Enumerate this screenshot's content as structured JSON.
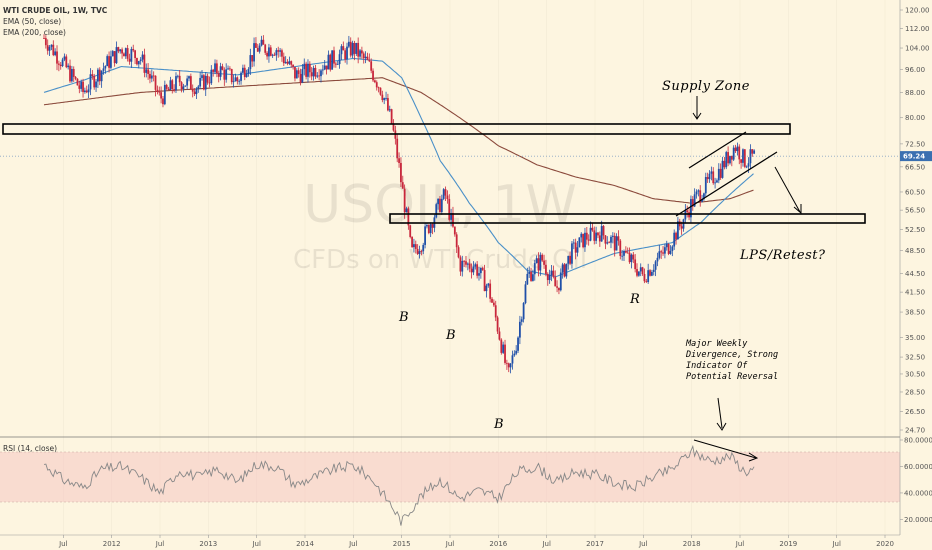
{
  "header": {
    "title": "WTI CRUDE OIL, 1W, TVC",
    "indicator_ema50": "EMA (50, close)",
    "indicator_ema200": "EMA (200, close)",
    "rsi_label": "RSI (14, close)"
  },
  "watermark": {
    "symbol": "USOIL, 1W",
    "description": "CFDs on WTI Crude Oil"
  },
  "colors": {
    "background": "#fdf5e0",
    "up_candle": "#1f4fa8",
    "down_candle": "#c8263b",
    "ema50": "#4a90c8",
    "ema200": "#8b4a3c",
    "rsi_band": "#f5c6c2",
    "rsi_line": "#888888",
    "last_price": "#3a6fb0"
  },
  "annotations": {
    "supply_zone": "Supply Zone",
    "lps_retest": "LPS/Retest?",
    "b1": "B",
    "b2": "B",
    "b3": "B",
    "r": "R",
    "divergence_line1": "Major Weekly",
    "divergence_line2": "Divergence, Strong",
    "divergence_line3": "Indicator Of",
    "divergence_line4": "Potential Reversal"
  },
  "last_price": "69.24",
  "chart_data": [
    {
      "type": "candlestick",
      "title": "WTI CRUDE OIL, 1W, TVC",
      "x_tick_labels": [
        "Jul",
        "2012",
        "Jul",
        "2013",
        "Jul",
        "2014",
        "Jul",
        "2015",
        "Jul",
        "2016",
        "Jul",
        "2017",
        "Jul",
        "2018",
        "Jul",
        "2019",
        "Jul",
        "2020"
      ],
      "y_tick_labels": [
        "120.00",
        "112.00",
        "104.00",
        "96.00",
        "88.00",
        "80.00",
        "72.50",
        "66.50",
        "60.50",
        "56.50",
        "52.50",
        "48.50",
        "44.50",
        "41.50",
        "38.50",
        "35.00",
        "32.50",
        "30.50",
        "28.50",
        "26.50",
        "24.70"
      ],
      "ylim": [
        24.7,
        120
      ],
      "scale": "log",
      "legend": [
        "EMA (50, close)",
        "EMA (200, close)"
      ],
      "legend_position": "top-left",
      "series": [
        {
          "name": "Close",
          "x": [
            2011.3,
            2011.5,
            2011.7,
            2011.9,
            2012.1,
            2012.3,
            2012.5,
            2012.7,
            2012.9,
            2013.1,
            2013.3,
            2013.5,
            2013.7,
            2013.9,
            2014.1,
            2014.3,
            2014.5,
            2014.65,
            2014.8,
            2014.9,
            2015.0,
            2015.1,
            2015.2,
            2015.35,
            2015.45,
            2015.6,
            2015.75,
            2015.9,
            2016.0,
            2016.1,
            2016.2,
            2016.3,
            2016.45,
            2016.6,
            2016.75,
            2016.9,
            2017.05,
            2017.2,
            2017.35,
            2017.5,
            2017.6,
            2017.75,
            2017.9,
            2018.0,
            2018.15,
            2018.3,
            2018.45,
            2018.55,
            2018.65
          ],
          "values": [
            108,
            98,
            88,
            96,
            104,
            100,
            86,
            92,
            90,
            96,
            92,
            104,
            104,
            94,
            96,
            100,
            104,
            98,
            88,
            78,
            62,
            48,
            50,
            56,
            60,
            46,
            46,
            42,
            36,
            30,
            35,
            44,
            47,
            42,
            48,
            51,
            52,
            50,
            47,
            44,
            46,
            49,
            54,
            58,
            62,
            66,
            72,
            68,
            69.24
          ]
        },
        {
          "name": "EMA (50, close)",
          "x": [
            2011.3,
            2011.7,
            2012.1,
            2012.5,
            2012.9,
            2013.3,
            2013.7,
            2014.1,
            2014.5,
            2014.8,
            2015.0,
            2015.2,
            2015.4,
            2015.7,
            2016.0,
            2016.3,
            2016.6,
            2016.9,
            2017.2,
            2017.5,
            2017.8,
            2018.1,
            2018.4,
            2018.65
          ],
          "values": [
            88,
            92,
            97,
            96,
            95,
            94,
            96,
            98,
            100,
            99,
            93,
            80,
            68,
            58,
            50,
            45,
            44,
            46,
            48,
            49,
            50,
            54,
            60,
            65
          ]
        },
        {
          "name": "EMA (200, close)",
          "x": [
            2011.3,
            2011.8,
            2012.3,
            2012.8,
            2013.3,
            2013.8,
            2014.3,
            2014.8,
            2015.2,
            2015.6,
            2016.0,
            2016.4,
            2016.8,
            2017.2,
            2017.6,
            2018.0,
            2018.4,
            2018.65
          ],
          "values": [
            84,
            86,
            88,
            89,
            90,
            91,
            92,
            93,
            88,
            80,
            72,
            67,
            64,
            62,
            59,
            58,
            59,
            61
          ]
        }
      ]
    },
    {
      "type": "line",
      "title": "RSI (14, close)",
      "y_tick_labels": [
        "80.0000",
        "60.0000",
        "40.0000",
        "20.0000"
      ],
      "ylim": [
        12,
        80
      ],
      "grid": false,
      "series": [
        {
          "name": "RSI (14, close)",
          "x": [
            2011.3,
            2011.5,
            2011.7,
            2011.9,
            2012.1,
            2012.3,
            2012.5,
            2012.7,
            2012.9,
            2013.1,
            2013.3,
            2013.5,
            2013.7,
            2013.9,
            2014.1,
            2014.3,
            2014.5,
            2014.7,
            2014.9,
            2015.0,
            2015.2,
            2015.4,
            2015.6,
            2015.8,
            2016.0,
            2016.2,
            2016.4,
            2016.6,
            2016.8,
            2017.0,
            2017.2,
            2017.4,
            2017.6,
            2017.8,
            2018.0,
            2018.2,
            2018.4,
            2018.55,
            2018.65
          ],
          "values": [
            62,
            50,
            44,
            58,
            60,
            52,
            40,
            57,
            52,
            58,
            48,
            62,
            60,
            46,
            52,
            58,
            61,
            50,
            30,
            18,
            38,
            50,
            36,
            42,
            36,
            56,
            60,
            48,
            56,
            54,
            48,
            44,
            52,
            58,
            72,
            64,
            68,
            56,
            58
          ]
        }
      ]
    }
  ]
}
